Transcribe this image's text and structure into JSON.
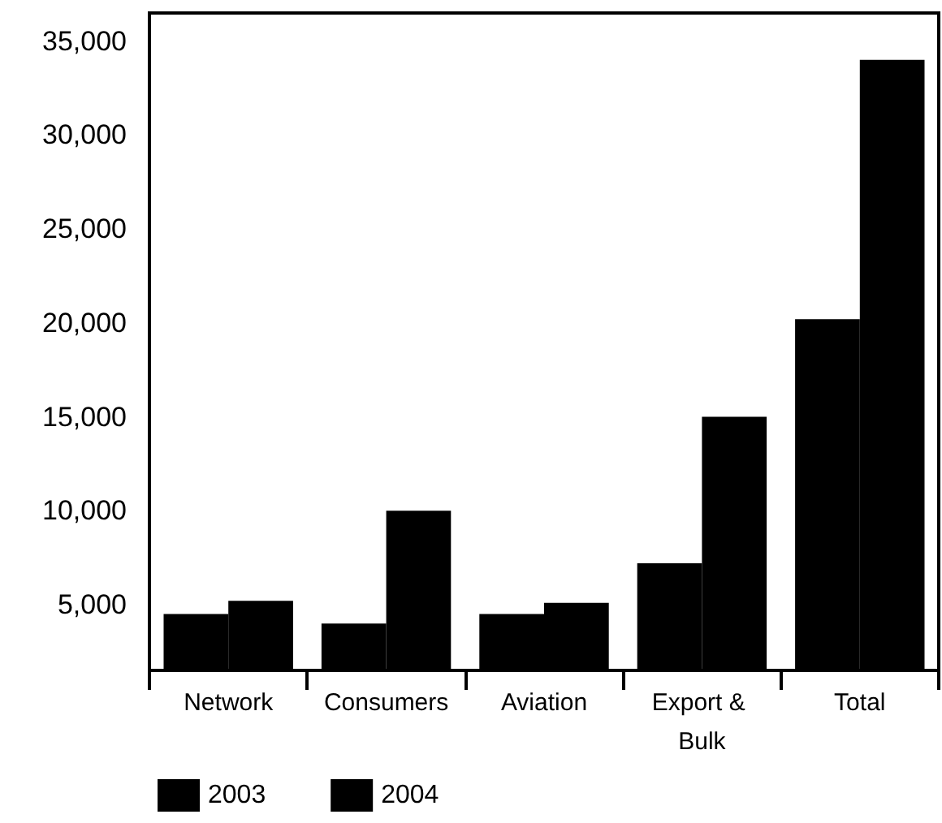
{
  "chart_data": {
    "type": "bar",
    "categories": [
      "Network",
      "Consumers",
      "Aviation",
      "Export & Bulk",
      "Total"
    ],
    "series": [
      {
        "name": "2003",
        "color": "#000000",
        "values": [
          4500,
          4000,
          4500,
          7200,
          20200
        ]
      },
      {
        "name": "2004",
        "color": "#000000",
        "values": [
          5200,
          10000,
          5100,
          15000,
          34000
        ]
      }
    ],
    "ylim": [
      1500,
      36500
    ],
    "yticks": [
      {
        "value": 5000,
        "label": "5,000"
      },
      {
        "value": 10000,
        "label": "10,000"
      },
      {
        "value": 15000,
        "label": "15,000"
      },
      {
        "value": 20000,
        "label": "20,000"
      },
      {
        "value": 25000,
        "label": "25,000"
      },
      {
        "value": 30000,
        "label": "30,000"
      },
      {
        "value": 35000,
        "label": "35,000"
      }
    ],
    "grid": false,
    "legend": "bottom left"
  }
}
